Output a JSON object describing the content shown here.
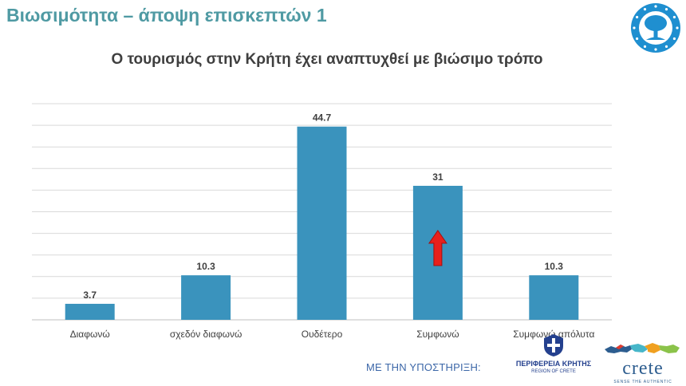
{
  "slide": {
    "title": "Βιωσιμότητα – άποψη επισκεπτών 1"
  },
  "chart_data": {
    "type": "bar",
    "title": "Ο τουρισμός στην Κρήτη έχει αναπτυχθεί με βιώσιμο τρόπο",
    "categories": [
      "Διαφωνώ",
      "σχεδόν διαφωνώ",
      "Ουδέτερο",
      "Συμφωνώ",
      "Συμφωνώ απόλυτα"
    ],
    "values": [
      3.7,
      10.3,
      44.7,
      31,
      10.3
    ],
    "data_labels": [
      "3.7",
      "10.3",
      "44.7",
      "31",
      "10.3"
    ],
    "ylim": [
      0,
      50
    ],
    "gridlines": true,
    "bar_color": "#3a93bd",
    "highlight": {
      "category": "Συμφωνώ",
      "icon": "red-up-arrow-icon",
      "color": "#e8201c"
    }
  },
  "footer": {
    "support_text": "ΜΕ ΤΗΝ ΥΠΟΣΤΗΡΙΞΗ:",
    "region_name": "ΠΕΡΙΦΕΡΕΙΑ ΚΡΗΤΗΣ",
    "region_subtitle": "REGION OF CRETE",
    "crete_wordmark": "crete",
    "crete_tagline": "SENSE THE AUTHENTIC"
  },
  "colors": {
    "title": "#4f9aa3",
    "chart_text": "#404040",
    "gridline": "#d9d9d9",
    "support_text": "#3c67a8",
    "region_blue": "#24408e"
  }
}
